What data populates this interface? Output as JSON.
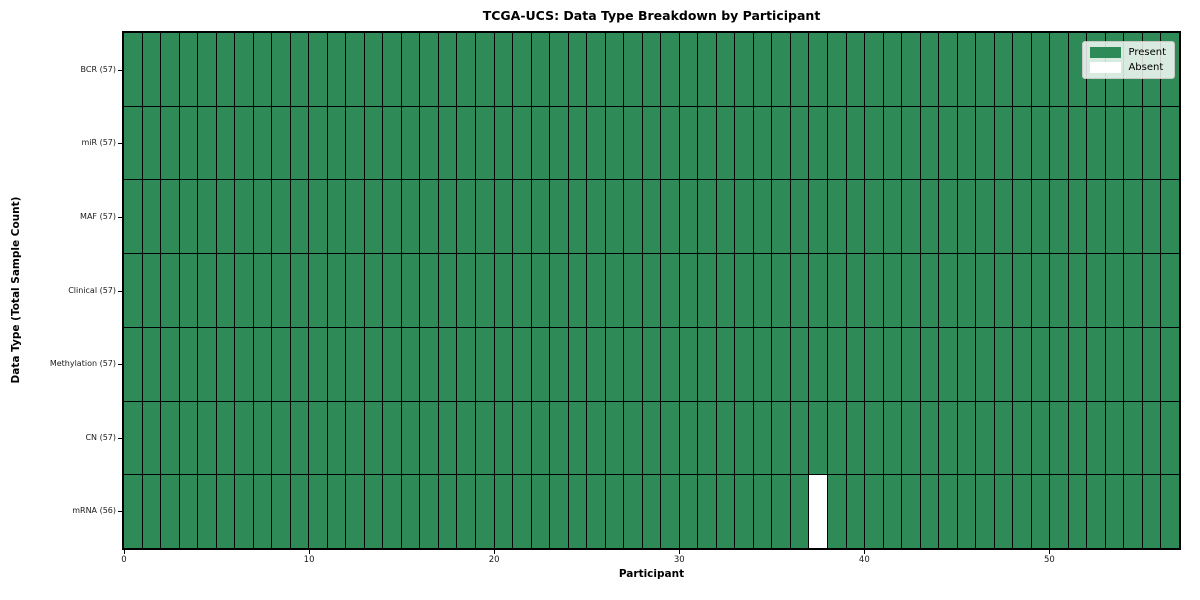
{
  "chart_data": {
    "type": "heatmap",
    "title": "TCGA-UCS: Data Type Breakdown by Participant",
    "xlabel": "Participant",
    "ylabel": "Data Type (Total Sample Count)",
    "n_participants": 57,
    "x_ticks": [
      0,
      10,
      20,
      30,
      40,
      50
    ],
    "xlim": [
      0,
      57
    ],
    "grid": true,
    "rows": [
      {
        "data_type": "BCR",
        "label": "BCR (57)",
        "count": 57,
        "absent_participants": []
      },
      {
        "data_type": "miR",
        "label": "miR (57)",
        "count": 57,
        "absent_participants": []
      },
      {
        "data_type": "MAF",
        "label": "MAF (57)",
        "count": 57,
        "absent_participants": []
      },
      {
        "data_type": "Clinical",
        "label": "Clinical (57)",
        "count": 57,
        "absent_participants": []
      },
      {
        "data_type": "Methylation",
        "label": "Methylation (57)",
        "count": 57,
        "absent_participants": []
      },
      {
        "data_type": "CN",
        "label": "CN (57)",
        "count": 57,
        "absent_participants": []
      },
      {
        "data_type": "mRNA",
        "label": "mRNA (56)",
        "count": 56,
        "absent_participants": [
          37
        ]
      }
    ],
    "legend": {
      "position": "upper right",
      "entries": [
        {
          "label": "Present",
          "color": "#2e8b57"
        },
        {
          "label": "Absent",
          "color": "#ffffff"
        }
      ]
    },
    "colors": {
      "present": "#2e8b57",
      "absent": "#ffffff",
      "cell_edge": "#000000",
      "legend_border": "#c7c7c7"
    }
  }
}
